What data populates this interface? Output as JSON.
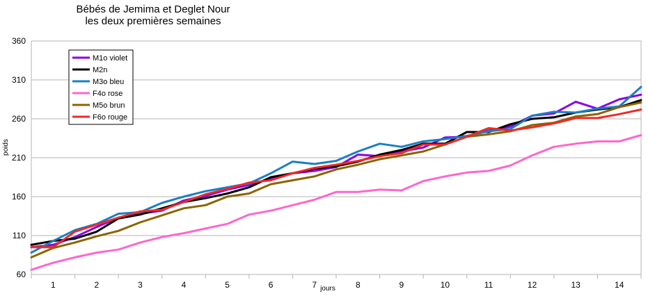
{
  "chart_data": {
    "type": "line",
    "title": "Bébés de Jemima et Deglet Nour",
    "subtitle": "les deux premières semaines",
    "xlabel": "jours",
    "ylabel": "poids",
    "ylim": [
      60,
      360
    ],
    "yticks": [
      60,
      110,
      160,
      210,
      260,
      310,
      360
    ],
    "xlim": [
      0.5,
      14.5
    ],
    "xticks": [
      1,
      2,
      3,
      4,
      5,
      6,
      7,
      8,
      9,
      10,
      11,
      12,
      13,
      14
    ],
    "grid": {
      "horizontal": true,
      "vertical": false
    },
    "legend": "top-left",
    "x": [
      0.5,
      1.0,
      1.5,
      2.0,
      2.5,
      3.0,
      3.5,
      4.0,
      4.5,
      5.0,
      5.5,
      6.0,
      6.5,
      7.0,
      7.5,
      8.0,
      8.5,
      9.0,
      9.5,
      10.0,
      10.5,
      11.0,
      11.5,
      12.0,
      12.5,
      13.0,
      13.5,
      14.0,
      14.5
    ],
    "series": [
      {
        "name": "M1o violet",
        "color": "#8b00e6",
        "values": [
          95,
          98,
          108,
          121,
          133,
          138,
          142,
          155,
          161,
          169,
          175,
          183,
          190,
          193,
          198,
          214,
          212,
          218,
          223,
          236,
          237,
          245,
          250,
          264,
          267,
          282,
          273,
          285,
          291
        ]
      },
      {
        "name": "M2n",
        "color": "#000000",
        "values": [
          98,
          103,
          106,
          115,
          132,
          137,
          145,
          153,
          158,
          164,
          172,
          185,
          190,
          196,
          199,
          205,
          214,
          220,
          228,
          228,
          243,
          243,
          253,
          260,
          262,
          268,
          272,
          275,
          284
        ]
      },
      {
        "name": "M3o bleu",
        "color": "#1a7fc4",
        "values": [
          88,
          103,
          117,
          125,
          138,
          140,
          152,
          160,
          167,
          172,
          177,
          190,
          205,
          202,
          206,
          218,
          228,
          224,
          231,
          234,
          238,
          244,
          247,
          264,
          269,
          268,
          273,
          276,
          301
        ]
      },
      {
        "name": "F4o rose",
        "color": "#ff66cc",
        "values": [
          66,
          75,
          82,
          88,
          92,
          101,
          108,
          113,
          119,
          125,
          137,
          142,
          149,
          156,
          166,
          166,
          169,
          168,
          180,
          186,
          191,
          193,
          200,
          213,
          224,
          228,
          231,
          231,
          239
        ]
      },
      {
        "name": "M5o brun",
        "color": "#8b6400",
        "values": [
          82,
          94,
          101,
          109,
          116,
          127,
          136,
          145,
          149,
          160,
          164,
          176,
          181,
          186,
          195,
          201,
          208,
          213,
          218,
          227,
          237,
          240,
          244,
          252,
          255,
          263,
          266,
          275,
          281
        ]
      },
      {
        "name": "F6o rouge",
        "color": "#ee2a2a",
        "values": [
          95,
          95,
          115,
          124,
          133,
          141,
          143,
          153,
          163,
          170,
          178,
          181,
          190,
          197,
          201,
          206,
          212,
          216,
          227,
          227,
          237,
          248,
          245,
          249,
          254,
          261,
          261,
          266,
          272
        ]
      }
    ]
  }
}
